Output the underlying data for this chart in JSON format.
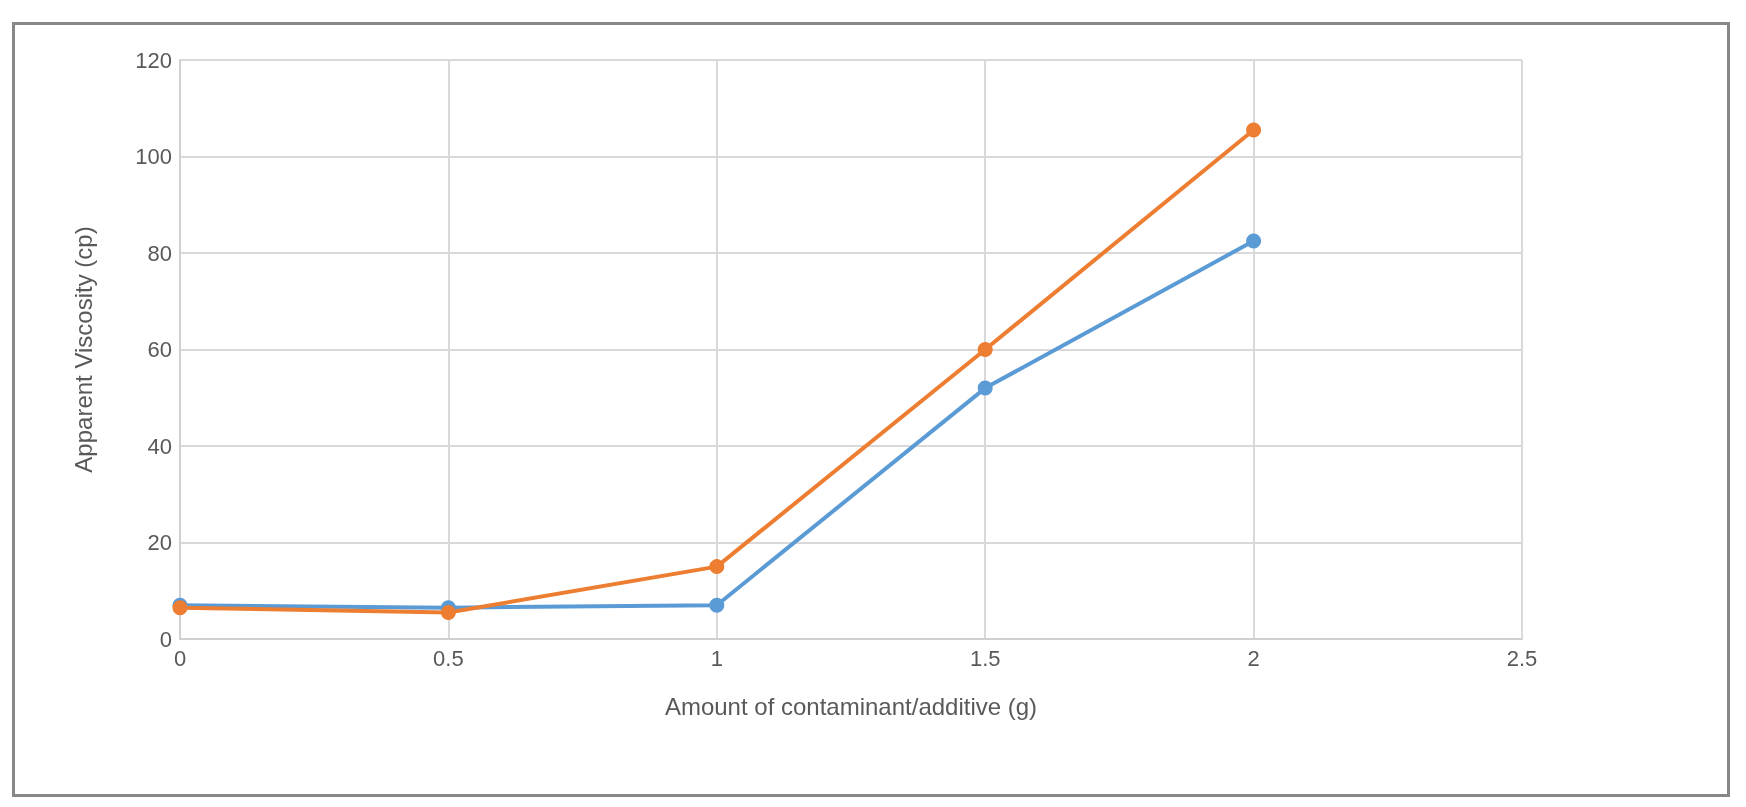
{
  "chart_data": {
    "type": "line",
    "xlabel": "Amount of contaminant/additive (g)",
    "ylabel": "Apparent Viscosity (cp)",
    "x": [
      0,
      0.5,
      1,
      1.5,
      2
    ],
    "series": [
      {
        "color": "#5b9bd5",
        "values": [
          7,
          6.5,
          7,
          52,
          82.5
        ]
      },
      {
        "color": "#ed7d31",
        "values": [
          6.5,
          5.5,
          15,
          60,
          105.5
        ]
      }
    ],
    "xlim": [
      0,
      2.5
    ],
    "xticks": [
      0,
      0.5,
      1,
      1.5,
      2,
      2.5
    ],
    "ylim": [
      0,
      120
    ],
    "yticks": [
      0,
      20,
      40,
      60,
      80,
      100,
      120
    ],
    "grid": true,
    "marker": "circle",
    "line_style": "solid"
  }
}
